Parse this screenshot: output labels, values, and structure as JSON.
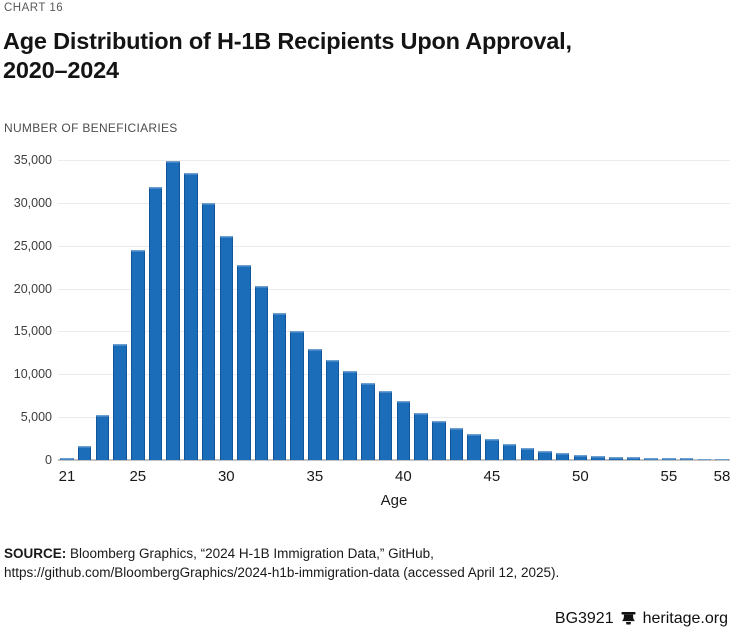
{
  "page": {
    "kicker": "CHART 16",
    "title_line1": "Age Distribution of H-1B Recipients Upon Approval,",
    "title_line2": "2020–2024",
    "source": {
      "label": "SOURCE:",
      "text1": " Bloomberg Graphics, “2024 H-1B Immigration Data,” GitHub,",
      "text2": "https://github.com/BloombergGraphics/2024-h1b-immigration-data (accessed April 12, 2025)."
    },
    "footer_id": "BG3921",
    "footer_site": "heritage.org",
    "bell_icon": "liberty-bell-icon"
  },
  "chart_data": {
    "type": "bar",
    "title": "Age Distribution of H-1B Recipients Upon Approval, 2020–2024",
    "ylabel": "NUMBER OF BENEFICIARIES",
    "xlabel": "Age",
    "x": [
      21,
      22,
      23,
      24,
      25,
      26,
      27,
      28,
      29,
      30,
      31,
      32,
      33,
      34,
      35,
      36,
      37,
      38,
      39,
      40,
      41,
      42,
      43,
      44,
      45,
      46,
      47,
      48,
      49,
      50,
      51,
      52,
      53,
      54,
      55,
      56,
      57,
      58
    ],
    "values": [
      250,
      1600,
      5300,
      13500,
      24500,
      31900,
      34900,
      33500,
      30000,
      26100,
      22800,
      20300,
      17200,
      15100,
      12900,
      11700,
      10400,
      9000,
      8000,
      6900,
      5500,
      4500,
      3700,
      3000,
      2400,
      1850,
      1450,
      1100,
      800,
      600,
      500,
      400,
      320,
      270,
      230,
      200,
      170,
      150
    ],
    "ylim": [
      0,
      35000
    ],
    "ytick_step": 5000,
    "xticks": [
      21,
      25,
      30,
      35,
      40,
      45,
      50,
      55,
      58
    ],
    "grid": true,
    "legend": "none",
    "bar_color": "#1c6db9",
    "gridline_color": "#ebebeb",
    "axis_line_color": "#c2c2c2"
  }
}
